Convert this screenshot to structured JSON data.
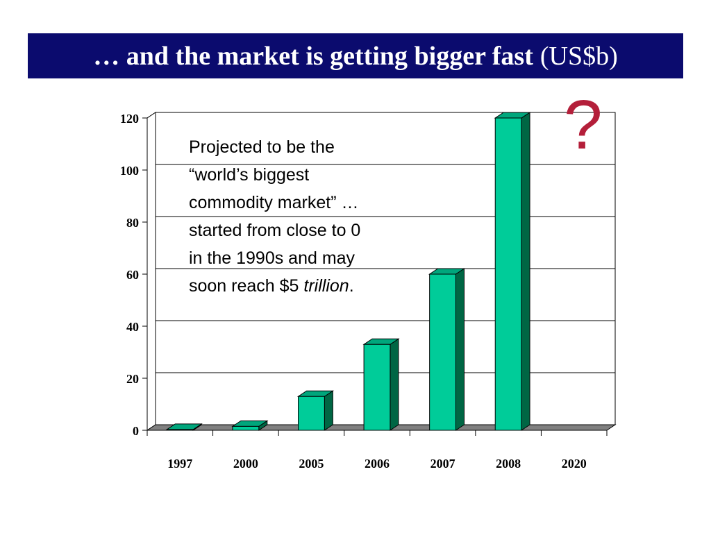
{
  "slide": {
    "title_main": "… and the market is getting bigger fast",
    "title_unit": "(US$b)",
    "annotation_lines": [
      "Projected to be the",
      "“world’s biggest",
      "commodity market” …",
      "started from close to 0",
      "in the 1990s and may"
    ],
    "annotation_last_prefix": "soon reach $5 ",
    "annotation_last_italic": "trillion",
    "annotation_last_suffix": ".",
    "question_mark": "?"
  },
  "colors": {
    "title_bg": "#0b0b6e",
    "title_text": "#ffffff",
    "bar_front": "#00cc99",
    "bar_side": "#006644",
    "bar_top": "#00a67c",
    "floor": "#808080",
    "question_mark": "#b41f3a"
  },
  "chart_data": {
    "type": "bar",
    "categories": [
      "1997",
      "2000",
      "2005",
      "2006",
      "2007",
      "2008",
      "2020"
    ],
    "values": [
      0.3,
      1.5,
      13,
      33,
      60,
      120,
      0
    ],
    "ylim": [
      0,
      120
    ],
    "yticks": [
      0,
      20,
      40,
      60,
      80,
      100,
      120
    ],
    "grid": true,
    "three_d": true,
    "title": "",
    "xlabel": "",
    "ylabel": ""
  }
}
